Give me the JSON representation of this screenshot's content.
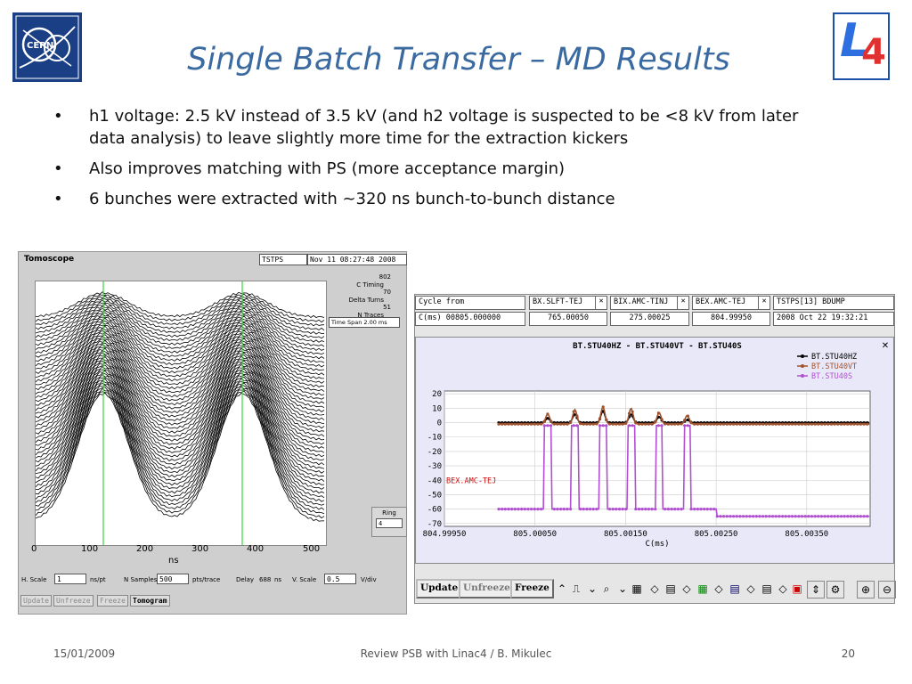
{
  "slide": {
    "title": "Single Batch Transfer – MD Results",
    "bullets": [
      "h1 voltage: 2.5 kV instead of 3.5 kV (and h2 voltage is suspected to be <8 kV from later data analysis) to leave slightly more time for the extraction kickers",
      "Also improves matching with PS (more acceptance margin)",
      "6 bunches were extracted with ~320 ns bunch-to-bunch distance"
    ],
    "bullet_glyph": "•",
    "logos": {
      "cern_text": "CERN",
      "l4_letter": "L",
      "l4_number": "4"
    },
    "footer": {
      "date": "15/01/2009",
      "center": "Review PSB with Linac4 / B. Mikulec",
      "page": "20"
    }
  },
  "tomoscope": {
    "window_title": "Tomoscope",
    "user": "TSTPS",
    "timestamp": "Nov 11 08:27:48 2008",
    "params": [
      {
        "label": "C Timing",
        "value": "802"
      },
      {
        "label": "Delta Turns",
        "value": "70"
      },
      {
        "label": "N Traces",
        "value": "51"
      }
    ],
    "time_span_label": "Time Span 2.00 ms",
    "ring_label": "Ring",
    "ring_value": "4",
    "x_axis_label": "ns",
    "x_ticks": [
      "0",
      "100",
      "200",
      "300",
      "400",
      "500"
    ],
    "controls": {
      "h_scale_label": "H. Scale",
      "h_scale_value": "1",
      "h_scale_unit": "ns/pt",
      "n_samples_label": "N Samples",
      "n_samples_value": "500",
      "n_samples_unit": "pts/trace",
      "delay_label": "Delay",
      "delay_value": "688",
      "delay_unit": "ns",
      "v_scale_label": "V. Scale",
      "v_scale_value": "0.5",
      "v_scale_unit": "V/div"
    },
    "buttons": [
      "Update",
      "Unfreeze",
      "Freeze",
      "Tomogram"
    ]
  },
  "bt_panel": {
    "cycle_label": "Cycle from",
    "cycle_value": "C(ms)  00805.000000",
    "columns": [
      {
        "name": "BX.SLFT-TEJ",
        "value": "765.00050"
      },
      {
        "name": "BIX.AMC-TINJ",
        "value": "275.00025"
      },
      {
        "name": "BEX.AMC-TEJ",
        "value": "804.99950"
      }
    ],
    "close_glyph": "✕",
    "status_label": "TSTPS[13] BDUMP",
    "status_time": "2008 Oct 22 19:32:21",
    "plot_title": "BT.STU40HZ  -  BT.STU40VT  -  BT.STU40S",
    "marker_label": "BEX.AMC-TEJ",
    "toolbar_buttons": [
      "Update",
      "Unfreeze",
      "Freeze"
    ]
  },
  "chart_data": {
    "type": "line",
    "title": "BT.STU40HZ  -  BT.STU40VT  -  BT.STU40S",
    "xlabel": "C(ms)",
    "ylabel": "",
    "x_ticks": [
      "804.99950",
      "805.00050",
      "805.00150",
      "805.00250",
      "805.00350"
    ],
    "y_ticks": [
      20,
      10,
      0,
      -10,
      -20,
      -30,
      -40,
      -50,
      -60,
      -70
    ],
    "xlim": [
      804.9995,
      805.0042
    ],
    "ylim": [
      -72,
      22
    ],
    "legend_position": "top-right",
    "grid": true,
    "bunch_centers": [
      805.00064,
      805.00094,
      805.00125,
      805.00156,
      805.00187,
      805.00218
    ],
    "series": [
      {
        "name": "BT.STU40HZ",
        "color": "#000000",
        "baseline": 0,
        "peaks": [
          3,
          6,
          8,
          6,
          4,
          2
        ]
      },
      {
        "name": "BT.STU40VT",
        "color": "#a0522d",
        "baseline": -1,
        "peaks": [
          6,
          9,
          11,
          10,
          7,
          5
        ]
      },
      {
        "name": "BT.STU40S",
        "color": "#b050d0",
        "baseline": -60,
        "peaks": [
          -2,
          -2,
          -2,
          -2,
          -2,
          -2
        ]
      }
    ]
  }
}
